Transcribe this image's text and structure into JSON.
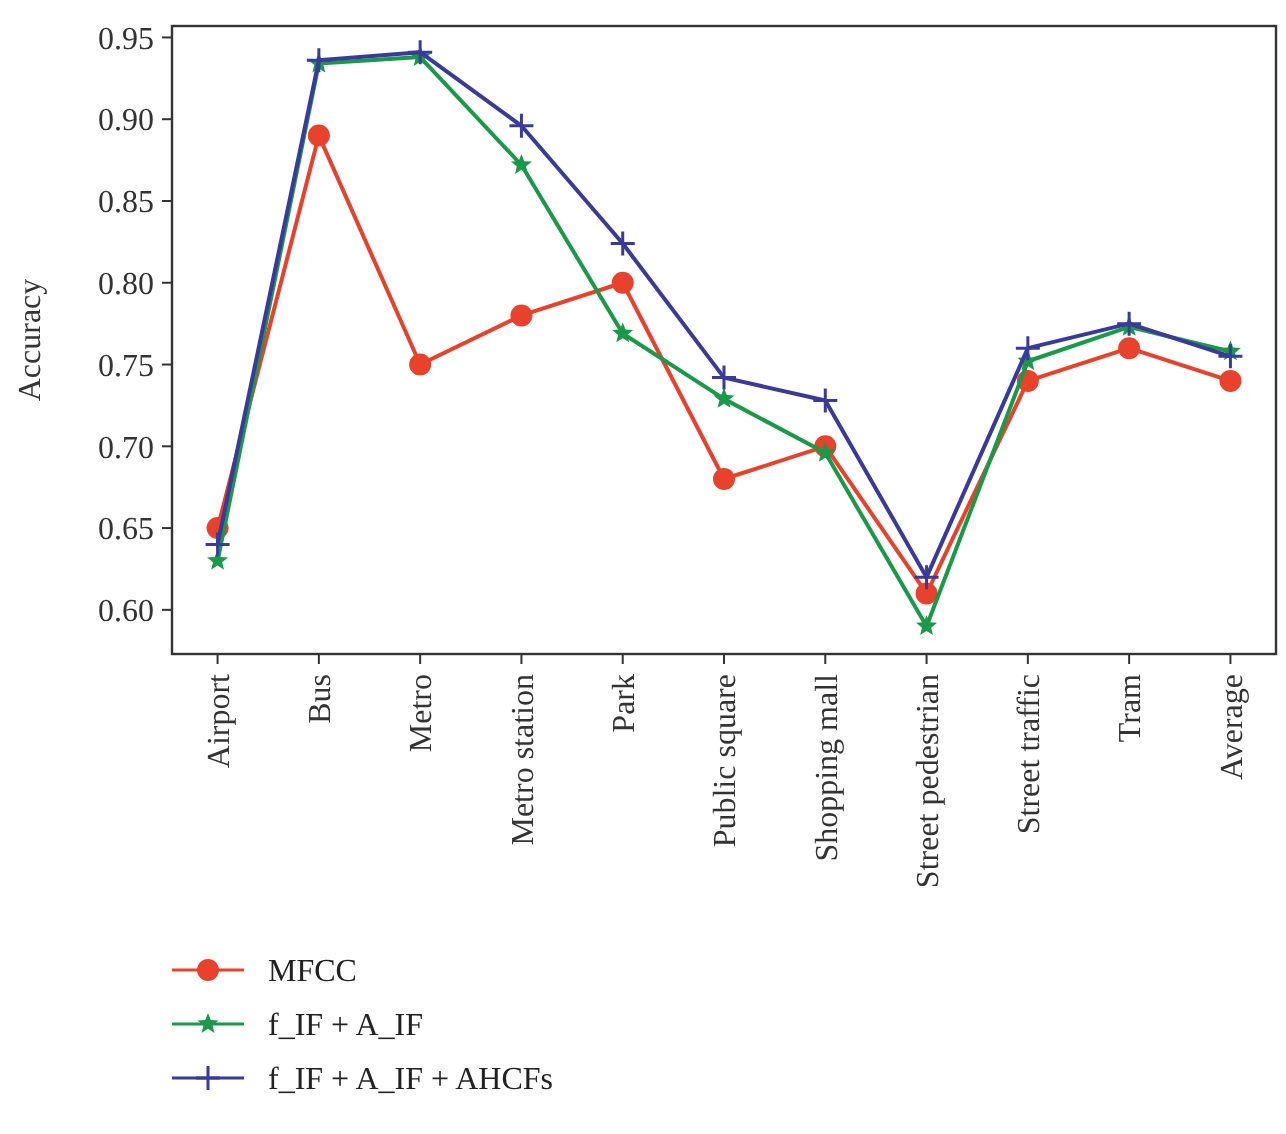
{
  "chart_data": {
    "type": "line",
    "ylabel": "Accuracy",
    "categories": [
      "Airport",
      "Bus",
      "Metro",
      "Metro station",
      "Park",
      "Public square",
      "Shopping mall",
      "Street pedestrian",
      "Street traffic",
      "Tram",
      "Average"
    ],
    "series": [
      {
        "name": "MFCC",
        "color": "#e8412c",
        "marker": "circle",
        "values": [
          0.65,
          0.89,
          0.75,
          0.78,
          0.8,
          0.68,
          0.7,
          0.61,
          0.74,
          0.76,
          0.74
        ]
      },
      {
        "name": "f_IF + A_IF",
        "color": "#1a9a48",
        "marker": "star",
        "values": [
          0.63,
          0.934,
          0.938,
          0.872,
          0.769,
          0.729,
          0.696,
          0.59,
          0.752,
          0.773,
          0.758
        ]
      },
      {
        "name": "f_IF + A_IF + AHCFs",
        "color": "#3a3a9a",
        "marker": "cross",
        "values": [
          0.64,
          0.936,
          0.941,
          0.896,
          0.824,
          0.742,
          0.728,
          0.62,
          0.76,
          0.775,
          0.755
        ]
      }
    ],
    "ylim": [
      0.573,
      0.957
    ],
    "yticks": [
      {
        "value": 0.6,
        "label": "0.60"
      },
      {
        "value": 0.65,
        "label": "0.65"
      },
      {
        "value": 0.7,
        "label": "0.70"
      },
      {
        "value": 0.75,
        "label": "0.75"
      },
      {
        "value": 0.8,
        "label": "0.80"
      },
      {
        "value": 0.85,
        "label": "0.85"
      },
      {
        "value": 0.9,
        "label": "0.90"
      },
      {
        "value": 0.95,
        "label": "0.95"
      }
    ],
    "grid": false,
    "legend": "bottom left"
  }
}
